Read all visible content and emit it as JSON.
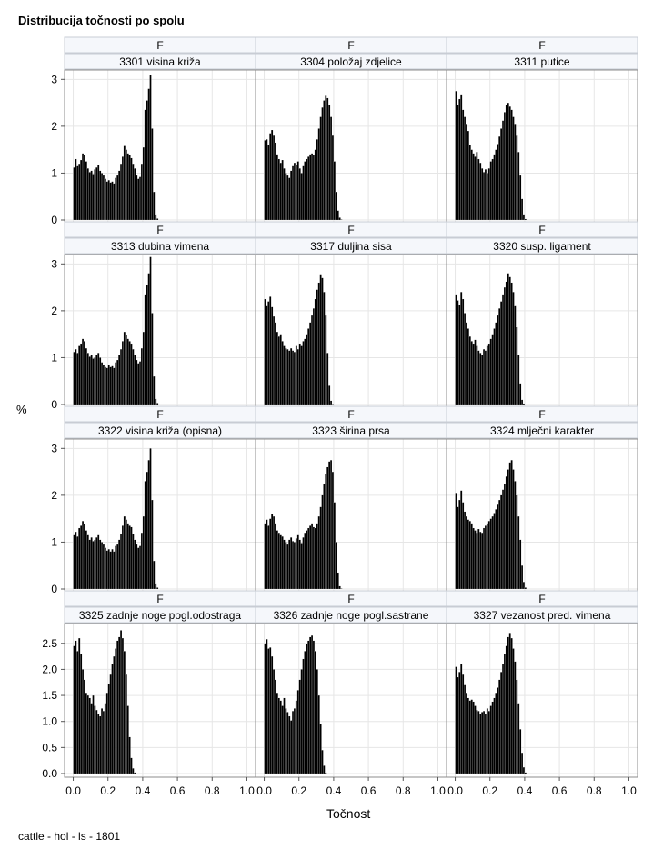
{
  "page": {
    "title": "Distribucija točnosti po spolu",
    "footnote": "cattle - hol - ls - 1801",
    "y_axis_label": "%",
    "x_axis_label": "Točnost"
  },
  "style": {
    "bar_color": "#000000",
    "header_bg": "#f5f7fb",
    "grid_color": "#e6e6e6",
    "frame_color": "#8c8c8c"
  },
  "chart_data": {
    "type": "histogram-panel",
    "row_label": "F",
    "xlabel": "Točnost",
    "ylabel": "%",
    "xlim": [
      -0.05,
      1.05
    ],
    "x_ticks": [
      0.0,
      0.2,
      0.4,
      0.6,
      0.8,
      1.0
    ],
    "x_tick_labels": [
      "0.0",
      "0.2",
      "0.4",
      "0.6",
      "0.8",
      "1.0"
    ],
    "bin_width": 0.01,
    "grid": true,
    "rows": [
      {
        "ylim": [
          0,
          3.2
        ],
        "y_ticks": [
          0,
          1,
          2,
          3
        ],
        "y_tick_labels": [
          "0",
          "1",
          "2",
          "3"
        ]
      },
      {
        "ylim": [
          0,
          3.2
        ],
        "y_ticks": [
          0,
          1,
          2,
          3
        ],
        "y_tick_labels": [
          "0",
          "1",
          "2",
          "3"
        ]
      },
      {
        "ylim": [
          0,
          3.2
        ],
        "y_ticks": [
          0,
          1,
          2,
          3
        ],
        "y_tick_labels": [
          "0",
          "1",
          "2",
          "3"
        ]
      },
      {
        "ylim": [
          0,
          2.88
        ],
        "y_ticks": [
          0,
          0.5,
          1,
          1.5,
          2,
          2.5
        ],
        "y_tick_labels": [
          "0.0",
          "0.5",
          "1.0",
          "1.5",
          "2.0",
          "2.5"
        ]
      }
    ],
    "panels": [
      {
        "label": "3301 visina križa",
        "x_start": 0.0,
        "values": [
          1.12,
          1.3,
          1.15,
          1.2,
          1.28,
          1.42,
          1.38,
          1.25,
          1.1,
          1.02,
          1.05,
          0.98,
          1.08,
          1.12,
          1.18,
          1.05,
          1.0,
          0.95,
          0.88,
          0.82,
          0.85,
          0.8,
          0.82,
          0.78,
          0.9,
          0.95,
          1.05,
          1.2,
          1.35,
          1.58,
          1.5,
          1.42,
          1.38,
          1.32,
          1.2,
          1.1,
          0.95,
          0.88,
          0.92,
          1.2,
          1.55,
          2.35,
          2.55,
          2.8,
          3.1,
          1.95,
          0.6,
          0.12,
          0.03
        ]
      },
      {
        "label": "3304 položaj zdjelice",
        "x_start": 0.0,
        "values": [
          1.7,
          1.72,
          1.6,
          1.85,
          1.92,
          1.8,
          1.65,
          1.4,
          1.3,
          1.22,
          1.28,
          1.1,
          1.0,
          0.95,
          0.9,
          1.05,
          1.15,
          1.22,
          1.18,
          1.25,
          1.1,
          1.0,
          1.15,
          1.25,
          1.3,
          1.35,
          1.4,
          1.42,
          1.38,
          1.5,
          1.72,
          1.95,
          2.2,
          2.4,
          2.55,
          2.65,
          2.6,
          2.45,
          2.2,
          1.8,
          1.25,
          0.6,
          0.2,
          0.05,
          0.01
        ]
      },
      {
        "label": "3311 putice",
        "x_start": 0.0,
        "values": [
          2.75,
          2.45,
          2.58,
          2.68,
          2.35,
          2.2,
          2.05,
          1.9,
          1.6,
          1.5,
          1.42,
          1.35,
          1.45,
          1.3,
          1.22,
          1.1,
          1.02,
          1.08,
          1.0,
          1.1,
          1.25,
          1.3,
          1.4,
          1.5,
          1.62,
          1.78,
          1.95,
          2.12,
          2.3,
          2.45,
          2.5,
          2.42,
          2.35,
          2.2,
          2.05,
          1.8,
          1.45,
          0.95,
          0.45,
          0.12,
          0.02
        ]
      },
      {
        "label": "3313 dubina vimena",
        "x_start": 0.0,
        "values": [
          1.12,
          1.18,
          1.1,
          1.25,
          1.3,
          1.4,
          1.35,
          1.2,
          1.1,
          1.02,
          1.05,
          0.98,
          1.0,
          1.05,
          1.1,
          1.0,
          0.9,
          0.85,
          0.8,
          0.78,
          0.85,
          0.8,
          0.82,
          0.78,
          0.9,
          0.95,
          1.05,
          1.18,
          1.35,
          1.55,
          1.48,
          1.4,
          1.35,
          1.3,
          1.18,
          1.05,
          0.95,
          0.88,
          0.92,
          1.2,
          1.55,
          2.35,
          2.55,
          2.8,
          3.15,
          1.95,
          0.6,
          0.12,
          0.03
        ]
      },
      {
        "label": "3317 duljina sisa",
        "x_start": 0.0,
        "values": [
          2.25,
          2.1,
          2.2,
          2.3,
          2.08,
          1.88,
          1.75,
          1.55,
          1.45,
          1.5,
          1.35,
          1.25,
          1.2,
          1.18,
          1.15,
          1.2,
          1.15,
          1.12,
          1.25,
          1.18,
          1.3,
          1.25,
          1.35,
          1.4,
          1.5,
          1.62,
          1.75,
          1.9,
          2.05,
          2.25,
          2.45,
          2.6,
          2.78,
          2.7,
          2.4,
          1.9,
          1.1,
          0.4,
          0.08,
          0.01
        ]
      },
      {
        "label": "3320 susp. ligament",
        "x_start": 0.0,
        "values": [
          2.35,
          2.22,
          2.12,
          2.4,
          2.25,
          1.95,
          1.75,
          1.62,
          1.45,
          1.35,
          1.3,
          1.38,
          1.25,
          1.15,
          1.1,
          1.05,
          1.18,
          1.15,
          1.25,
          1.3,
          1.4,
          1.5,
          1.62,
          1.75,
          1.9,
          2.05,
          2.2,
          2.35,
          2.5,
          2.62,
          2.8,
          2.72,
          2.6,
          2.4,
          2.1,
          1.65,
          1.05,
          0.45,
          0.1,
          0.02
        ]
      },
      {
        "label": "3322 visina križa (opisna)",
        "x_start": 0.0,
        "values": [
          1.15,
          1.22,
          1.12,
          1.3,
          1.35,
          1.45,
          1.38,
          1.25,
          1.15,
          1.05,
          1.1,
          1.02,
          1.05,
          1.1,
          1.15,
          1.05,
          1.0,
          0.95,
          0.88,
          0.82,
          0.85,
          0.8,
          0.85,
          0.8,
          0.92,
          0.95,
          1.05,
          1.18,
          1.35,
          1.55,
          1.48,
          1.4,
          1.35,
          1.32,
          1.18,
          1.05,
          0.95,
          0.88,
          0.92,
          1.2,
          1.55,
          2.3,
          2.5,
          2.75,
          3.0,
          1.9,
          0.6,
          0.12,
          0.03
        ]
      },
      {
        "label": "3323 širina prsa",
        "x_start": 0.0,
        "values": [
          1.4,
          1.48,
          1.35,
          1.5,
          1.6,
          1.55,
          1.4,
          1.25,
          1.2,
          1.15,
          1.12,
          1.05,
          1.0,
          0.95,
          1.05,
          1.1,
          1.02,
          1.0,
          1.08,
          1.15,
          1.05,
          0.98,
          1.1,
          1.2,
          1.25,
          1.3,
          1.35,
          1.4,
          1.32,
          1.3,
          1.4,
          1.55,
          1.75,
          2.0,
          2.25,
          2.45,
          2.6,
          2.72,
          2.75,
          2.5,
          1.85,
          1.0,
          0.35,
          0.06,
          0.01
        ]
      },
      {
        "label": "3324 mlječni karakter",
        "x_start": 0.0,
        "values": [
          2.05,
          1.75,
          1.9,
          2.1,
          1.85,
          1.65,
          1.55,
          1.48,
          1.45,
          1.4,
          1.3,
          1.25,
          1.2,
          1.28,
          1.22,
          1.2,
          1.3,
          1.35,
          1.4,
          1.45,
          1.5,
          1.55,
          1.62,
          1.7,
          1.8,
          1.9,
          2.0,
          2.12,
          2.25,
          2.4,
          2.55,
          2.7,
          2.75,
          2.55,
          2.3,
          2.0,
          1.55,
          1.05,
          0.5,
          0.15,
          0.03
        ]
      },
      {
        "label": "3325 zadnje noge pogl.odostraga",
        "x_start": 0.0,
        "values": [
          2.45,
          2.55,
          2.35,
          2.6,
          2.3,
          2.0,
          1.8,
          1.55,
          1.5,
          1.45,
          1.35,
          1.5,
          1.3,
          1.22,
          1.15,
          1.1,
          1.25,
          1.2,
          1.35,
          1.55,
          1.72,
          1.9,
          2.1,
          2.25,
          2.4,
          2.55,
          2.62,
          2.75,
          2.6,
          2.35,
          1.9,
          1.3,
          0.7,
          0.3,
          0.1,
          0.02
        ]
      },
      {
        "label": "3326 zadnje noge pogl.sastrane",
        "x_start": 0.0,
        "values": [
          2.5,
          2.58,
          2.4,
          2.42,
          2.25,
          2.0,
          1.8,
          1.55,
          1.45,
          1.4,
          1.3,
          1.45,
          1.25,
          1.18,
          1.1,
          1.02,
          1.2,
          1.25,
          1.4,
          1.6,
          1.8,
          2.0,
          2.2,
          2.35,
          2.48,
          2.55,
          2.62,
          2.65,
          2.55,
          2.35,
          2.0,
          1.5,
          0.95,
          0.45,
          0.15,
          0.02
        ]
      },
      {
        "label": "3327 vezanost pred. vimena",
        "x_start": 0.0,
        "values": [
          2.05,
          1.85,
          1.95,
          2.1,
          1.9,
          1.7,
          1.55,
          1.45,
          1.4,
          1.42,
          1.38,
          1.3,
          1.22,
          1.2,
          1.15,
          1.18,
          1.2,
          1.15,
          1.25,
          1.2,
          1.3,
          1.38,
          1.45,
          1.55,
          1.65,
          1.8,
          1.95,
          2.1,
          2.3,
          2.45,
          2.62,
          2.7,
          2.6,
          2.4,
          2.15,
          1.8,
          1.35,
          0.85,
          0.4,
          0.12,
          0.02
        ]
      }
    ]
  }
}
